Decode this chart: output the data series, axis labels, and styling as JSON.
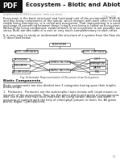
{
  "title": "Ecosystem – Biotic and Abiotic",
  "subtitle": "Biotic Components",
  "page_bg": "#ffffff",
  "fig_caption": "Fig: Schematic Representation of Structure of an Ecosystem",
  "diagram": {
    "ecosystem_box": "ECOSYSTEM",
    "left_box": "BIOTIC COMPONENTS",
    "right_box": "ABIOTIC COMPONENTS",
    "left_sub": [
      "PRODUCERS",
      "CONSUMERS",
      "DECOMPOSERS"
    ],
    "center_boxes": [
      "CLIMATIC FACTORS",
      "EDAPHIC FACTORS"
    ],
    "right_sub": [
      "LIGHT",
      "TEMPERATURE",
      "WATER",
      "SOIL"
    ]
  },
  "body_text": [
    "Ecosystem is the basic structural and functional unit of the environment. Both the living",
    "and non-living components of the nature, which interact with each other to establish a",
    "stable living community, is is called and ecosystem. That improvement is a constant",
    "exchange of something between these living & non-living is called an Ecosystem.",
    "Without the living component, establishment of an ecosystem is not possible and vice",
    "versa. Both are two sides of a coin or very much complementary to each other.",
    "",
    "It is very easy to study or understand the structure of a system from the flow chart (Fig.",
    "1) described below."
  ],
  "biotic_text": [
    "Biotic components are also divided into 3 categories basing upon their trophic",
    "relationships.",
    "",
    "1.  Producers:  Producers are the autotrophic (auto means self, troph means to",
    "nourish) of the ecosystem. They are the green plants and green microorganisms",
    "who can make their own food (material) by using carbon dioxide and water in",
    "presence of sunlight with the help of chlorophyll present in them. Ex: All green",
    "plants, Algae, Cyanobacteria."
  ],
  "header_color": "#1a1a1a",
  "text_color": "#222222",
  "font_size_title": 5.2,
  "font_size_body": 2.5,
  "font_size_box": 2.2,
  "font_size_caption": 2.3,
  "font_size_section": 3.2,
  "url_text": "studylib.net/doc/8234862/ecosystem---biotic-and-abiotic-...",
  "date_text": "15 Nov 2015",
  "page_num": "1/2"
}
